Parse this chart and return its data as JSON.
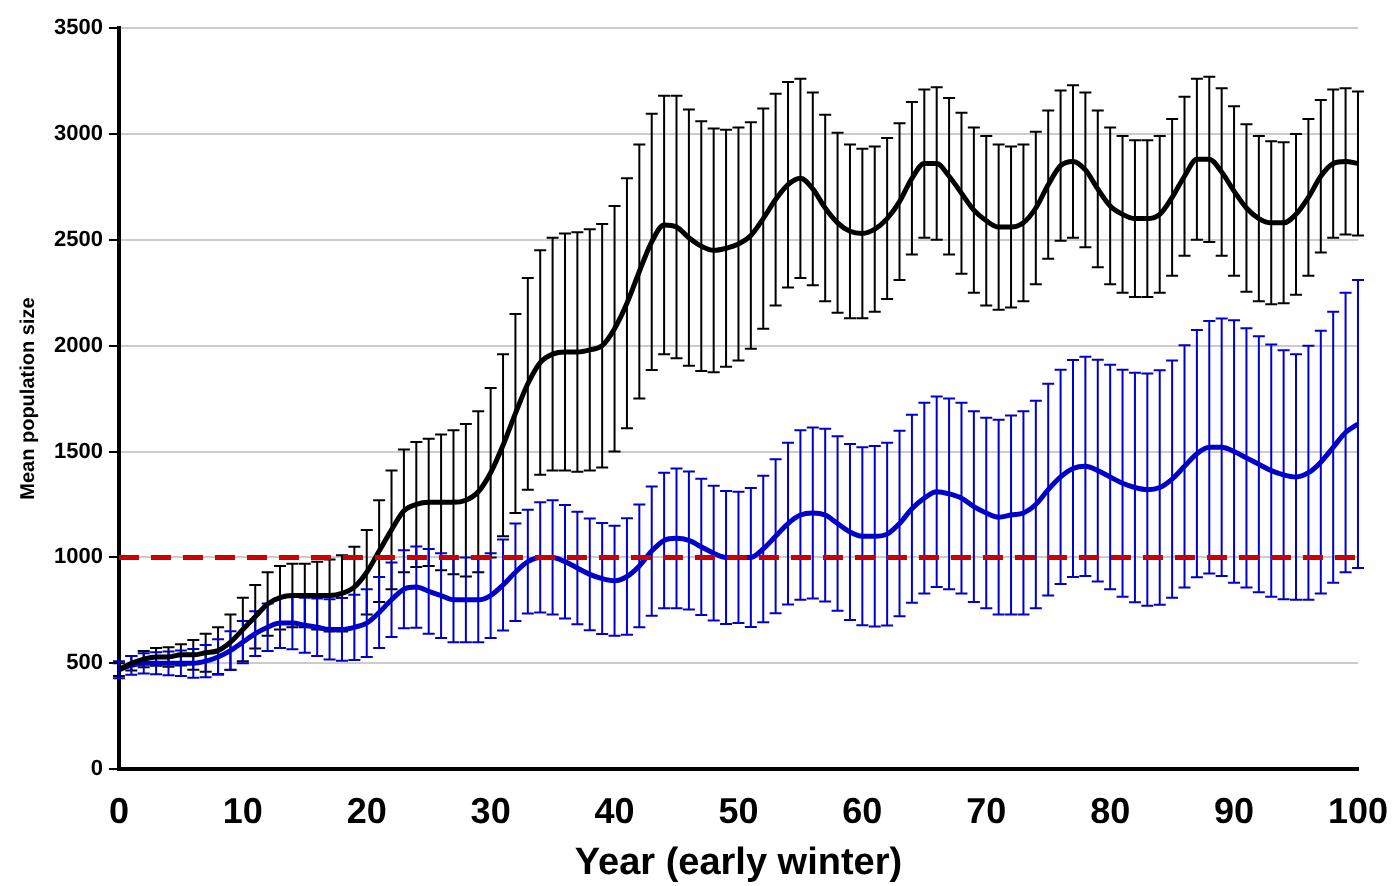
{
  "chart_data": {
    "type": "line",
    "xlabel": "Year (early winter)",
    "ylabel": "Mean population size",
    "x": [
      0,
      1,
      2,
      3,
      4,
      5,
      6,
      7,
      8,
      9,
      10,
      11,
      12,
      13,
      14,
      15,
      16,
      17,
      18,
      19,
      20,
      21,
      22,
      23,
      24,
      25,
      26,
      27,
      28,
      29,
      30,
      31,
      32,
      33,
      34,
      35,
      36,
      37,
      38,
      39,
      40,
      41,
      42,
      43,
      44,
      45,
      46,
      47,
      48,
      49,
      50,
      51,
      52,
      53,
      54,
      55,
      56,
      57,
      58,
      59,
      60,
      61,
      62,
      63,
      64,
      65,
      66,
      67,
      68,
      69,
      70,
      71,
      72,
      73,
      74,
      75,
      76,
      77,
      78,
      79,
      80,
      81,
      82,
      83,
      84,
      85,
      86,
      87,
      88,
      89,
      90,
      91,
      92,
      93,
      94,
      95,
      96,
      97,
      98,
      99,
      100
    ],
    "series": [
      {
        "color": "#000000",
        "values": [
          470,
          500,
          520,
          530,
          530,
          540,
          540,
          550,
          560,
          600,
          660,
          720,
          780,
          810,
          820,
          820,
          820,
          820,
          830,
          860,
          930,
          1030,
          1130,
          1220,
          1250,
          1260,
          1260,
          1260,
          1270,
          1310,
          1400,
          1530,
          1680,
          1820,
          1920,
          1960,
          1970,
          1970,
          1980,
          2000,
          2080,
          2200,
          2350,
          2490,
          2570,
          2560,
          2510,
          2470,
          2450,
          2460,
          2480,
          2520,
          2600,
          2690,
          2760,
          2790,
          2740,
          2650,
          2580,
          2540,
          2530,
          2550,
          2600,
          2680,
          2790,
          2860,
          2860,
          2800,
          2720,
          2640,
          2590,
          2560,
          2560,
          2580,
          2650,
          2760,
          2850,
          2870,
          2830,
          2740,
          2660,
          2620,
          2600,
          2600,
          2620,
          2700,
          2800,
          2880,
          2880,
          2820,
          2730,
          2650,
          2600,
          2580,
          2580,
          2620,
          2700,
          2800,
          2860,
          2870,
          2860
        ],
        "errors": [
          30,
          34,
          38,
          42,
          46,
          50,
          70,
          90,
          110,
          130,
          150,
          150,
          150,
          150,
          150,
          150,
          160,
          170,
          180,
          190,
          200,
          240,
          280,
          290,
          295,
          300,
          320,
          340,
          360,
          380,
          400,
          430,
          470,
          500,
          530,
          550,
          560,
          565,
          570,
          575,
          580,
          590,
          600,
          605,
          610,
          620,
          605,
          590,
          575,
          560,
          550,
          535,
          520,
          500,
          485,
          470,
          455,
          440,
          425,
          410,
          400,
          390,
          380,
          370,
          360,
          350,
          360,
          370,
          380,
          390,
          400,
          390,
          380,
          370,
          360,
          350,
          355,
          360,
          365,
          370,
          370,
          370,
          370,
          370,
          370,
          370,
          375,
          380,
          390,
          395,
          400,
          395,
          390,
          385,
          380,
          380,
          370,
          360,
          350,
          345,
          340
        ]
      },
      {
        "color": "#0000cc",
        "values": [
          470,
          490,
          500,
          500,
          500,
          500,
          500,
          510,
          530,
          560,
          600,
          640,
          670,
          690,
          690,
          680,
          670,
          660,
          660,
          670,
          690,
          740,
          800,
          850,
          860,
          840,
          820,
          800,
          800,
          800,
          820,
          870,
          930,
          980,
          1000,
          1000,
          980,
          950,
          920,
          900,
          890,
          910,
          960,
          1030,
          1080,
          1090,
          1080,
          1050,
          1020,
          1000,
          1000,
          1000,
          1040,
          1100,
          1160,
          1200,
          1210,
          1200,
          1160,
          1120,
          1100,
          1100,
          1110,
          1160,
          1230,
          1280,
          1310,
          1300,
          1280,
          1240,
          1210,
          1190,
          1200,
          1210,
          1250,
          1320,
          1380,
          1420,
          1430,
          1410,
          1380,
          1350,
          1330,
          1320,
          1330,
          1370,
          1430,
          1490,
          1520,
          1520,
          1500,
          1470,
          1440,
          1410,
          1390,
          1380,
          1400,
          1450,
          1520,
          1590,
          1630
        ],
        "errors": [
          40,
          44,
          48,
          52,
          56,
          60,
          68,
          76,
          84,
          92,
          100,
          106,
          112,
          118,
          124,
          130,
          136,
          142,
          148,
          154,
          160,
          168,
          176,
          184,
          192,
          200,
          200,
          200,
          200,
          200,
          200,
          215,
          230,
          245,
          260,
          270,
          268,
          266,
          264,
          262,
          260,
          275,
          290,
          305,
          320,
          330,
          326,
          322,
          318,
          314,
          310,
          328,
          346,
          364,
          382,
          400,
          404,
          408,
          412,
          416,
          420,
          426,
          432,
          438,
          444,
          450,
          450,
          450,
          450,
          450,
          450,
          460,
          470,
          480,
          490,
          500,
          506,
          512,
          518,
          524,
          530,
          536,
          542,
          548,
          554,
          560,
          572,
          584,
          596,
          608,
          620,
          612,
          604,
          596,
          588,
          580,
          600,
          620,
          640,
          660,
          680
        ]
      }
    ],
    "xlim": [
      0,
      100
    ],
    "xticks": [
      0,
      10,
      20,
      30,
      40,
      50,
      60,
      70,
      80,
      90,
      100
    ],
    "ylim": [
      0,
      3500
    ],
    "yticks": [
      0,
      500,
      1000,
      1500,
      2000,
      2500,
      3000,
      3500
    ],
    "ref_lines": [
      {
        "axis": "y",
        "value": 1000,
        "color": "#cc0000",
        "line_style": "dashed"
      }
    ],
    "grid": "y",
    "legend": false,
    "marker": "none",
    "line_style": "solid"
  }
}
